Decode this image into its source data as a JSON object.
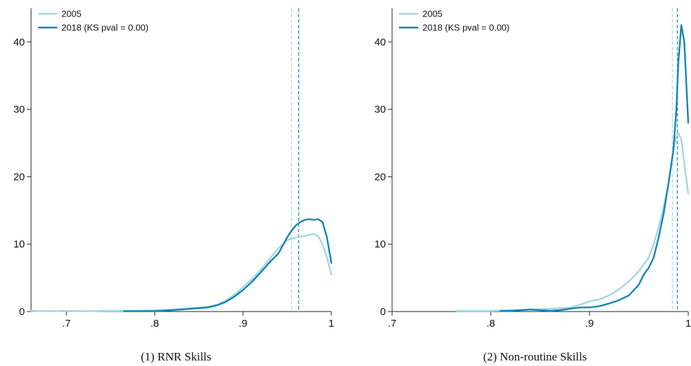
{
  "colors": {
    "light": "#a6d6e0",
    "dark": "#1384b3",
    "axis": "#222222"
  },
  "chart_data": [
    {
      "type": "line",
      "caption": "(1) RNR Skills",
      "xlim": [
        0.66,
        1.0
      ],
      "ylim": [
        0,
        45
      ],
      "x_ticks": [
        0.7,
        0.8,
        0.9,
        1.0
      ],
      "x_tick_labels": [
        ".7",
        ".8",
        ".9",
        "1"
      ],
      "y_ticks": [
        0,
        10,
        20,
        30,
        40
      ],
      "y_tick_labels": [
        "0",
        "10",
        "20",
        "30",
        "40"
      ],
      "grid": false,
      "legend_position": "top-left",
      "vlines": [
        {
          "x": 0.955,
          "series": "2005"
        },
        {
          "x": 0.963,
          "series": "2018 (KS pval = 0.00)"
        }
      ],
      "series": [
        {
          "name": "2005",
          "color": "light",
          "x": [
            0.66,
            0.68,
            0.7,
            0.72,
            0.74,
            0.76,
            0.78,
            0.8,
            0.82,
            0.84,
            0.86,
            0.87,
            0.88,
            0.89,
            0.9,
            0.91,
            0.92,
            0.93,
            0.94,
            0.95,
            0.96,
            0.97,
            0.975,
            0.98,
            0.985,
            0.99,
            0.995,
            1.0
          ],
          "y": [
            0.1,
            0.05,
            0.1,
            0.05,
            0.1,
            0.1,
            0.1,
            0.2,
            0.3,
            0.5,
            0.7,
            1.0,
            1.6,
            2.5,
            3.6,
            4.8,
            6.2,
            7.8,
            9.4,
            10.6,
            11.0,
            11.2,
            11.4,
            11.5,
            11.2,
            10.0,
            8.0,
            5.5
          ]
        },
        {
          "name": "2018 (KS pval = 0.00)",
          "color": "dark",
          "x": [
            0.765,
            0.78,
            0.8,
            0.82,
            0.84,
            0.86,
            0.87,
            0.88,
            0.89,
            0.9,
            0.91,
            0.92,
            0.93,
            0.94,
            0.945,
            0.95,
            0.955,
            0.96,
            0.965,
            0.97,
            0.975,
            0.98,
            0.985,
            0.99,
            0.995,
            1.0
          ],
          "y": [
            0.05,
            0.05,
            0.05,
            0.2,
            0.4,
            0.6,
            0.9,
            1.4,
            2.2,
            3.2,
            4.4,
            5.8,
            7.3,
            8.6,
            9.8,
            11.0,
            12.0,
            12.8,
            13.3,
            13.6,
            13.7,
            13.6,
            13.7,
            13.3,
            11.0,
            7.2
          ]
        }
      ]
    },
    {
      "type": "line",
      "caption": "(2) Non-routine Skills",
      "xlim": [
        0.7,
        1.0
      ],
      "ylim": [
        0,
        45
      ],
      "x_ticks": [
        0.7,
        0.8,
        0.9,
        1.0
      ],
      "x_tick_labels": [
        ".7",
        ".8",
        ".9",
        "1"
      ],
      "y_ticks": [
        0,
        10,
        20,
        30,
        40
      ],
      "y_tick_labels": [
        "0",
        "10",
        "20",
        "30",
        "40"
      ],
      "grid": false,
      "legend_position": "top-left",
      "vlines": [
        {
          "x": 0.984,
          "series": "2005"
        },
        {
          "x": 0.989,
          "series": "2018 (KS pval = 0.00)"
        }
      ],
      "series": [
        {
          "name": "2005",
          "color": "light",
          "x": [
            0.765,
            0.78,
            0.8,
            0.82,
            0.84,
            0.86,
            0.88,
            0.89,
            0.9,
            0.91,
            0.92,
            0.93,
            0.94,
            0.95,
            0.96,
            0.965,
            0.97,
            0.975,
            0.98,
            0.985,
            0.988,
            0.99,
            0.993,
            0.996,
            1.0
          ],
          "y": [
            0.1,
            0.1,
            0.1,
            0.2,
            0.3,
            0.4,
            0.6,
            1.0,
            1.5,
            1.8,
            2.4,
            3.3,
            4.5,
            6.0,
            8.0,
            10.0,
            12.5,
            15.5,
            19.0,
            24.0,
            26.0,
            26.5,
            25.5,
            22.0,
            17.5
          ]
        },
        {
          "name": "2018 (KS pval = 0.00)",
          "color": "dark",
          "x": [
            0.81,
            0.82,
            0.84,
            0.86,
            0.87,
            0.88,
            0.89,
            0.9,
            0.91,
            0.92,
            0.93,
            0.94,
            0.95,
            0.955,
            0.96,
            0.965,
            0.97,
            0.975,
            0.98,
            0.985,
            0.988,
            0.99,
            0.993,
            0.996,
            1.0
          ],
          "y": [
            0.1,
            0.1,
            0.3,
            0.1,
            0.2,
            0.4,
            0.6,
            0.6,
            0.8,
            1.2,
            1.7,
            2.4,
            4.0,
            5.5,
            6.5,
            8.0,
            11.0,
            14.5,
            19.0,
            24.0,
            30.0,
            37.0,
            42.5,
            40.0,
            28.0
          ]
        }
      ]
    }
  ]
}
